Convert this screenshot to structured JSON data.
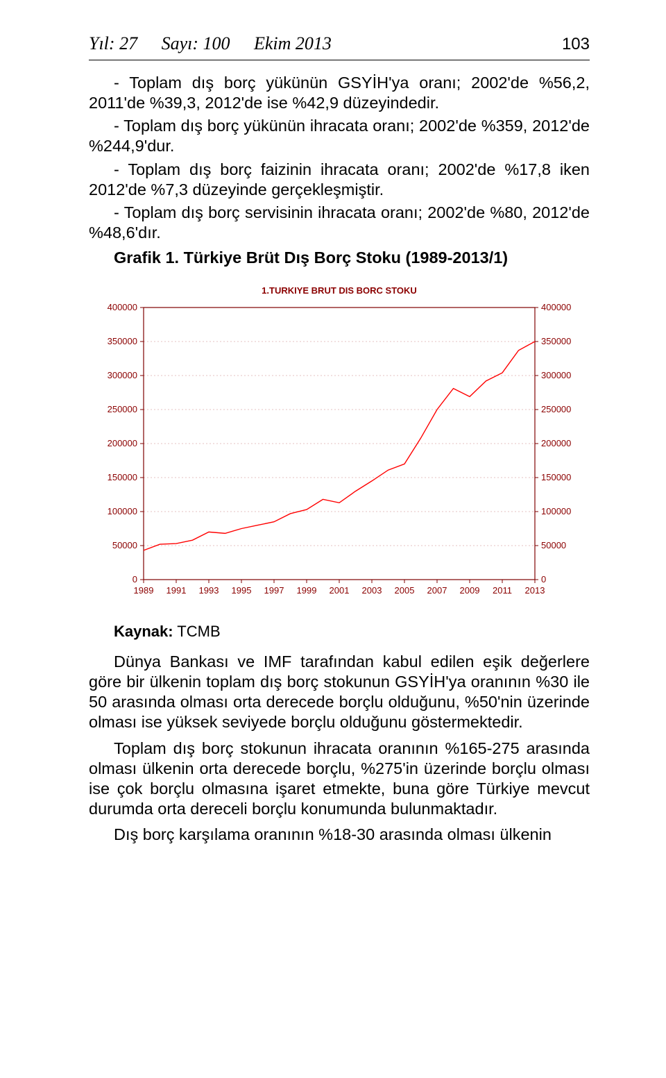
{
  "header": {
    "yil_label": "Yıl: 27",
    "sayi_label": "Sayı: 100",
    "tarih_label": "Ekim 2013",
    "page_number": "103"
  },
  "bullets": [
    "- Toplam dış borç yükünün GSYİH'ya oranı; 2002'de %56,2, 2011'de %39,3, 2012'de ise %42,9 düzeyindedir.",
    "- Toplam dış borç yükünün ihracata oranı; 2002'de %359, 2012'de %244,9'dur.",
    "- Toplam dış borç faizinin ihracata oranı; 2002'de %17,8 iken 2012'de %7,3 düzeyinde gerçekleşmiştir.",
    "- Toplam dış borç servisinin ihracata oranı; 2002'de %80, 2012'de %48,6'dır."
  ],
  "grafik_heading": "Grafik 1. Türkiye Brüt Dış Borç Stoku (1989-2013/1)",
  "chart": {
    "type": "line",
    "title": "1.TURKIYE BRUT DIS BORC STOKU",
    "title_color": "#8b0000",
    "line_color": "#ff0000",
    "axis_color": "#7f0000",
    "tick_label_color": "#8b0000",
    "grid_color": "#e4c0c0",
    "background_color": "#ffffff",
    "line_width": 1.4,
    "y_ticks": [
      0,
      50000,
      100000,
      150000,
      200000,
      250000,
      300000,
      350000,
      400000
    ],
    "y_tick_labels": [
      "0",
      "50000",
      "100000",
      "150000",
      "200000",
      "250000",
      "300000",
      "350000",
      "400000"
    ],
    "ylim": [
      0,
      400000
    ],
    "x_ticks": [
      1989,
      1991,
      1993,
      1995,
      1997,
      1999,
      2001,
      2003,
      2005,
      2007,
      2009,
      2011,
      2013
    ],
    "x_tick_labels": [
      "1989",
      "1991",
      "1993",
      "1995",
      "1997",
      "1999",
      "2001",
      "2003",
      "2005",
      "2007",
      "2009",
      "2011",
      "2013"
    ],
    "xlim": [
      1989,
      2013
    ],
    "data": [
      {
        "x": 1989,
        "y": 43000
      },
      {
        "x": 1990,
        "y": 52000
      },
      {
        "x": 1991,
        "y": 53000
      },
      {
        "x": 1992,
        "y": 58000
      },
      {
        "x": 1993,
        "y": 70000
      },
      {
        "x": 1994,
        "y": 68000
      },
      {
        "x": 1995,
        "y": 75000
      },
      {
        "x": 1996,
        "y": 80000
      },
      {
        "x": 1997,
        "y": 85000
      },
      {
        "x": 1998,
        "y": 97000
      },
      {
        "x": 1999,
        "y": 103000
      },
      {
        "x": 2000,
        "y": 118000
      },
      {
        "x": 2001,
        "y": 113000
      },
      {
        "x": 2002,
        "y": 130000
      },
      {
        "x": 2003,
        "y": 145000
      },
      {
        "x": 2004,
        "y": 161000
      },
      {
        "x": 2005,
        "y": 170000
      },
      {
        "x": 2006,
        "y": 208000
      },
      {
        "x": 2007,
        "y": 250000
      },
      {
        "x": 2008,
        "y": 281000
      },
      {
        "x": 2009,
        "y": 269000
      },
      {
        "x": 2010,
        "y": 292000
      },
      {
        "x": 2011,
        "y": 304000
      },
      {
        "x": 2012,
        "y": 337000
      },
      {
        "x": 2013,
        "y": 350000
      }
    ],
    "tick_fontsize": 13,
    "title_fontsize": 13,
    "right_axis": true
  },
  "kaynak_label": "Kaynak:",
  "kaynak_value": " TCMB",
  "paragraphs": [
    "Dünya Bankası ve IMF tarafından kabul edilen eşik değerlere göre bir ülkenin toplam dış borç stokunun GSYİH'ya oranının %30 ile 50 arasında olması orta derecede borçlu olduğunu, %50'nin üzerinde olması ise yüksek seviyede borçlu olduğunu göstermektedir.",
    "Toplam dış borç stokunun ihracata oranının %165-275 arasında olması ülkenin orta derecede borçlu, %275'in üzerinde borçlu olması ise çok borçlu olmasına işaret etmekte, buna göre Türkiye mevcut durumda orta dereceli borçlu konumunda bulunmaktadır.",
    "Dış borç karşılama oranının %18-30 arasında olması ülkenin"
  ]
}
